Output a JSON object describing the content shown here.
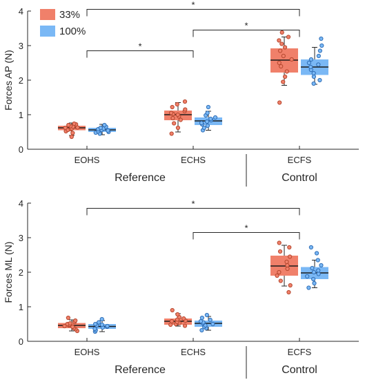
{
  "chart_data": [
    {
      "type": "box",
      "ylabel": "Forces AP (N)",
      "ylim": [
        0,
        4
      ],
      "yticks": [
        "0",
        "1",
        "2",
        "3",
        "4"
      ],
      "categories": [
        "EOHS",
        "ECHS",
        "ECFS"
      ],
      "groups": [
        {
          "label": "Reference",
          "categories": [
            "EOHS",
            "ECHS"
          ]
        },
        {
          "label": "Control",
          "categories": [
            "ECFS"
          ]
        }
      ],
      "legend": {
        "placement": "top-left",
        "entries": [
          "33%",
          "100%"
        ]
      },
      "series": [
        {
          "name": "33%",
          "color": "#f0806a",
          "edge_color": "#b5472e",
          "boxes": [
            {
              "q1": 0.55,
              "median": 0.62,
              "q3": 0.68,
              "whisker_low": 0.4,
              "whisker_high": 0.76,
              "points": [
                0.36,
                0.47,
                0.52,
                0.56,
                0.58,
                0.6,
                0.62,
                0.63,
                0.65,
                0.67,
                0.7,
                0.72,
                0.74
              ]
            },
            {
              "q1": 0.84,
              "median": 1.0,
              "q3": 1.12,
              "whisker_low": 0.5,
              "whisker_high": 1.35,
              "points": [
                0.45,
                0.62,
                0.75,
                0.85,
                0.9,
                0.95,
                1.0,
                1.02,
                1.05,
                1.1,
                1.15,
                1.22,
                1.3,
                1.38
              ]
            },
            {
              "q1": 2.22,
              "median": 2.58,
              "q3": 2.92,
              "whisker_low": 1.85,
              "whisker_high": 3.25,
              "points": [
                1.35,
                1.95,
                2.1,
                2.25,
                2.4,
                2.5,
                2.6,
                2.7,
                2.85,
                2.95,
                3.05,
                3.15,
                3.25,
                3.38
              ]
            }
          ]
        },
        {
          "name": "100%",
          "color": "#7ab8f5",
          "edge_color": "#2f6db5",
          "boxes": [
            {
              "q1": 0.5,
              "median": 0.56,
              "q3": 0.62,
              "whisker_low": 0.42,
              "whisker_high": 0.72,
              "points": [
                0.45,
                0.48,
                0.5,
                0.52,
                0.54,
                0.56,
                0.58,
                0.6,
                0.62,
                0.65,
                0.7
              ]
            },
            {
              "q1": 0.7,
              "median": 0.82,
              "q3": 0.92,
              "whisker_low": 0.55,
              "whisker_high": 1.1,
              "points": [
                0.55,
                0.62,
                0.68,
                0.72,
                0.76,
                0.8,
                0.84,
                0.88,
                0.92,
                0.98,
                1.05,
                1.22
              ]
            },
            {
              "q1": 2.15,
              "median": 2.38,
              "q3": 2.6,
              "whisker_low": 1.88,
              "whisker_high": 2.95,
              "points": [
                1.9,
                2.0,
                2.1,
                2.2,
                2.3,
                2.38,
                2.45,
                2.5,
                2.6,
                2.7,
                2.85,
                3.0,
                3.2
              ]
            }
          ]
        }
      ],
      "annotations": [
        {
          "from": "EOHS",
          "to": "ECFS",
          "level": 4.05,
          "text": "*"
        },
        {
          "from": "ECHS",
          "to": "ECFS",
          "level": 3.45,
          "text": "*"
        },
        {
          "from": "EOHS",
          "to": "ECHS",
          "level": 2.85,
          "text": "*"
        }
      ]
    },
    {
      "type": "box",
      "ylabel": "Forces ML (N)",
      "ylim": [
        0,
        4
      ],
      "yticks": [
        "0",
        "1",
        "2",
        "3",
        "4"
      ],
      "categories": [
        "EOHS",
        "ECHS",
        "ECFS"
      ],
      "groups": [
        {
          "label": "Reference",
          "categories": [
            "EOHS",
            "ECHS"
          ]
        },
        {
          "label": "Control",
          "categories": [
            "ECFS"
          ]
        }
      ],
      "series": [
        {
          "name": "33%",
          "color": "#f0806a",
          "edge_color": "#b5472e",
          "boxes": [
            {
              "q1": 0.38,
              "median": 0.46,
              "q3": 0.53,
              "whisker_low": 0.3,
              "whisker_high": 0.62,
              "points": [
                0.3,
                0.35,
                0.38,
                0.42,
                0.44,
                0.46,
                0.48,
                0.5,
                0.52,
                0.56,
                0.6,
                0.68
              ]
            },
            {
              "q1": 0.48,
              "median": 0.58,
              "q3": 0.66,
              "whisker_low": 0.44,
              "whisker_high": 0.8,
              "points": [
                0.45,
                0.48,
                0.5,
                0.53,
                0.56,
                0.58,
                0.6,
                0.63,
                0.66,
                0.7,
                0.78,
                0.9
              ]
            },
            {
              "q1": 1.9,
              "median": 2.18,
              "q3": 2.48,
              "whisker_low": 1.6,
              "whisker_high": 2.78,
              "points": [
                1.42,
                1.62,
                1.75,
                1.9,
                2.0,
                2.1,
                2.2,
                2.3,
                2.45,
                2.6,
                2.72,
                2.85
              ]
            }
          ]
        },
        {
          "name": "100%",
          "color": "#7ab8f5",
          "edge_color": "#2f6db5",
          "boxes": [
            {
              "q1": 0.36,
              "median": 0.43,
              "q3": 0.5,
              "whisker_low": 0.28,
              "whisker_high": 0.6,
              "points": [
                0.28,
                0.32,
                0.36,
                0.4,
                0.42,
                0.44,
                0.46,
                0.48,
                0.5,
                0.55,
                0.64
              ]
            },
            {
              "q1": 0.42,
              "median": 0.52,
              "q3": 0.6,
              "whisker_low": 0.32,
              "whisker_high": 0.72,
              "points": [
                0.32,
                0.38,
                0.42,
                0.46,
                0.5,
                0.52,
                0.55,
                0.58,
                0.62,
                0.68,
                0.76
              ]
            },
            {
              "q1": 1.8,
              "median": 1.98,
              "q3": 2.15,
              "whisker_low": 1.55,
              "whisker_high": 2.35,
              "points": [
                1.55,
                1.68,
                1.8,
                1.88,
                1.95,
                2.0,
                2.05,
                2.12,
                2.2,
                2.35,
                2.55,
                2.72
              ]
            }
          ]
        }
      ],
      "annotations": [
        {
          "from": "EOHS",
          "to": "ECFS",
          "level": 3.85,
          "text": "*"
        },
        {
          "from": "ECHS",
          "to": "ECFS",
          "level": 3.15,
          "text": "*"
        }
      ]
    }
  ]
}
